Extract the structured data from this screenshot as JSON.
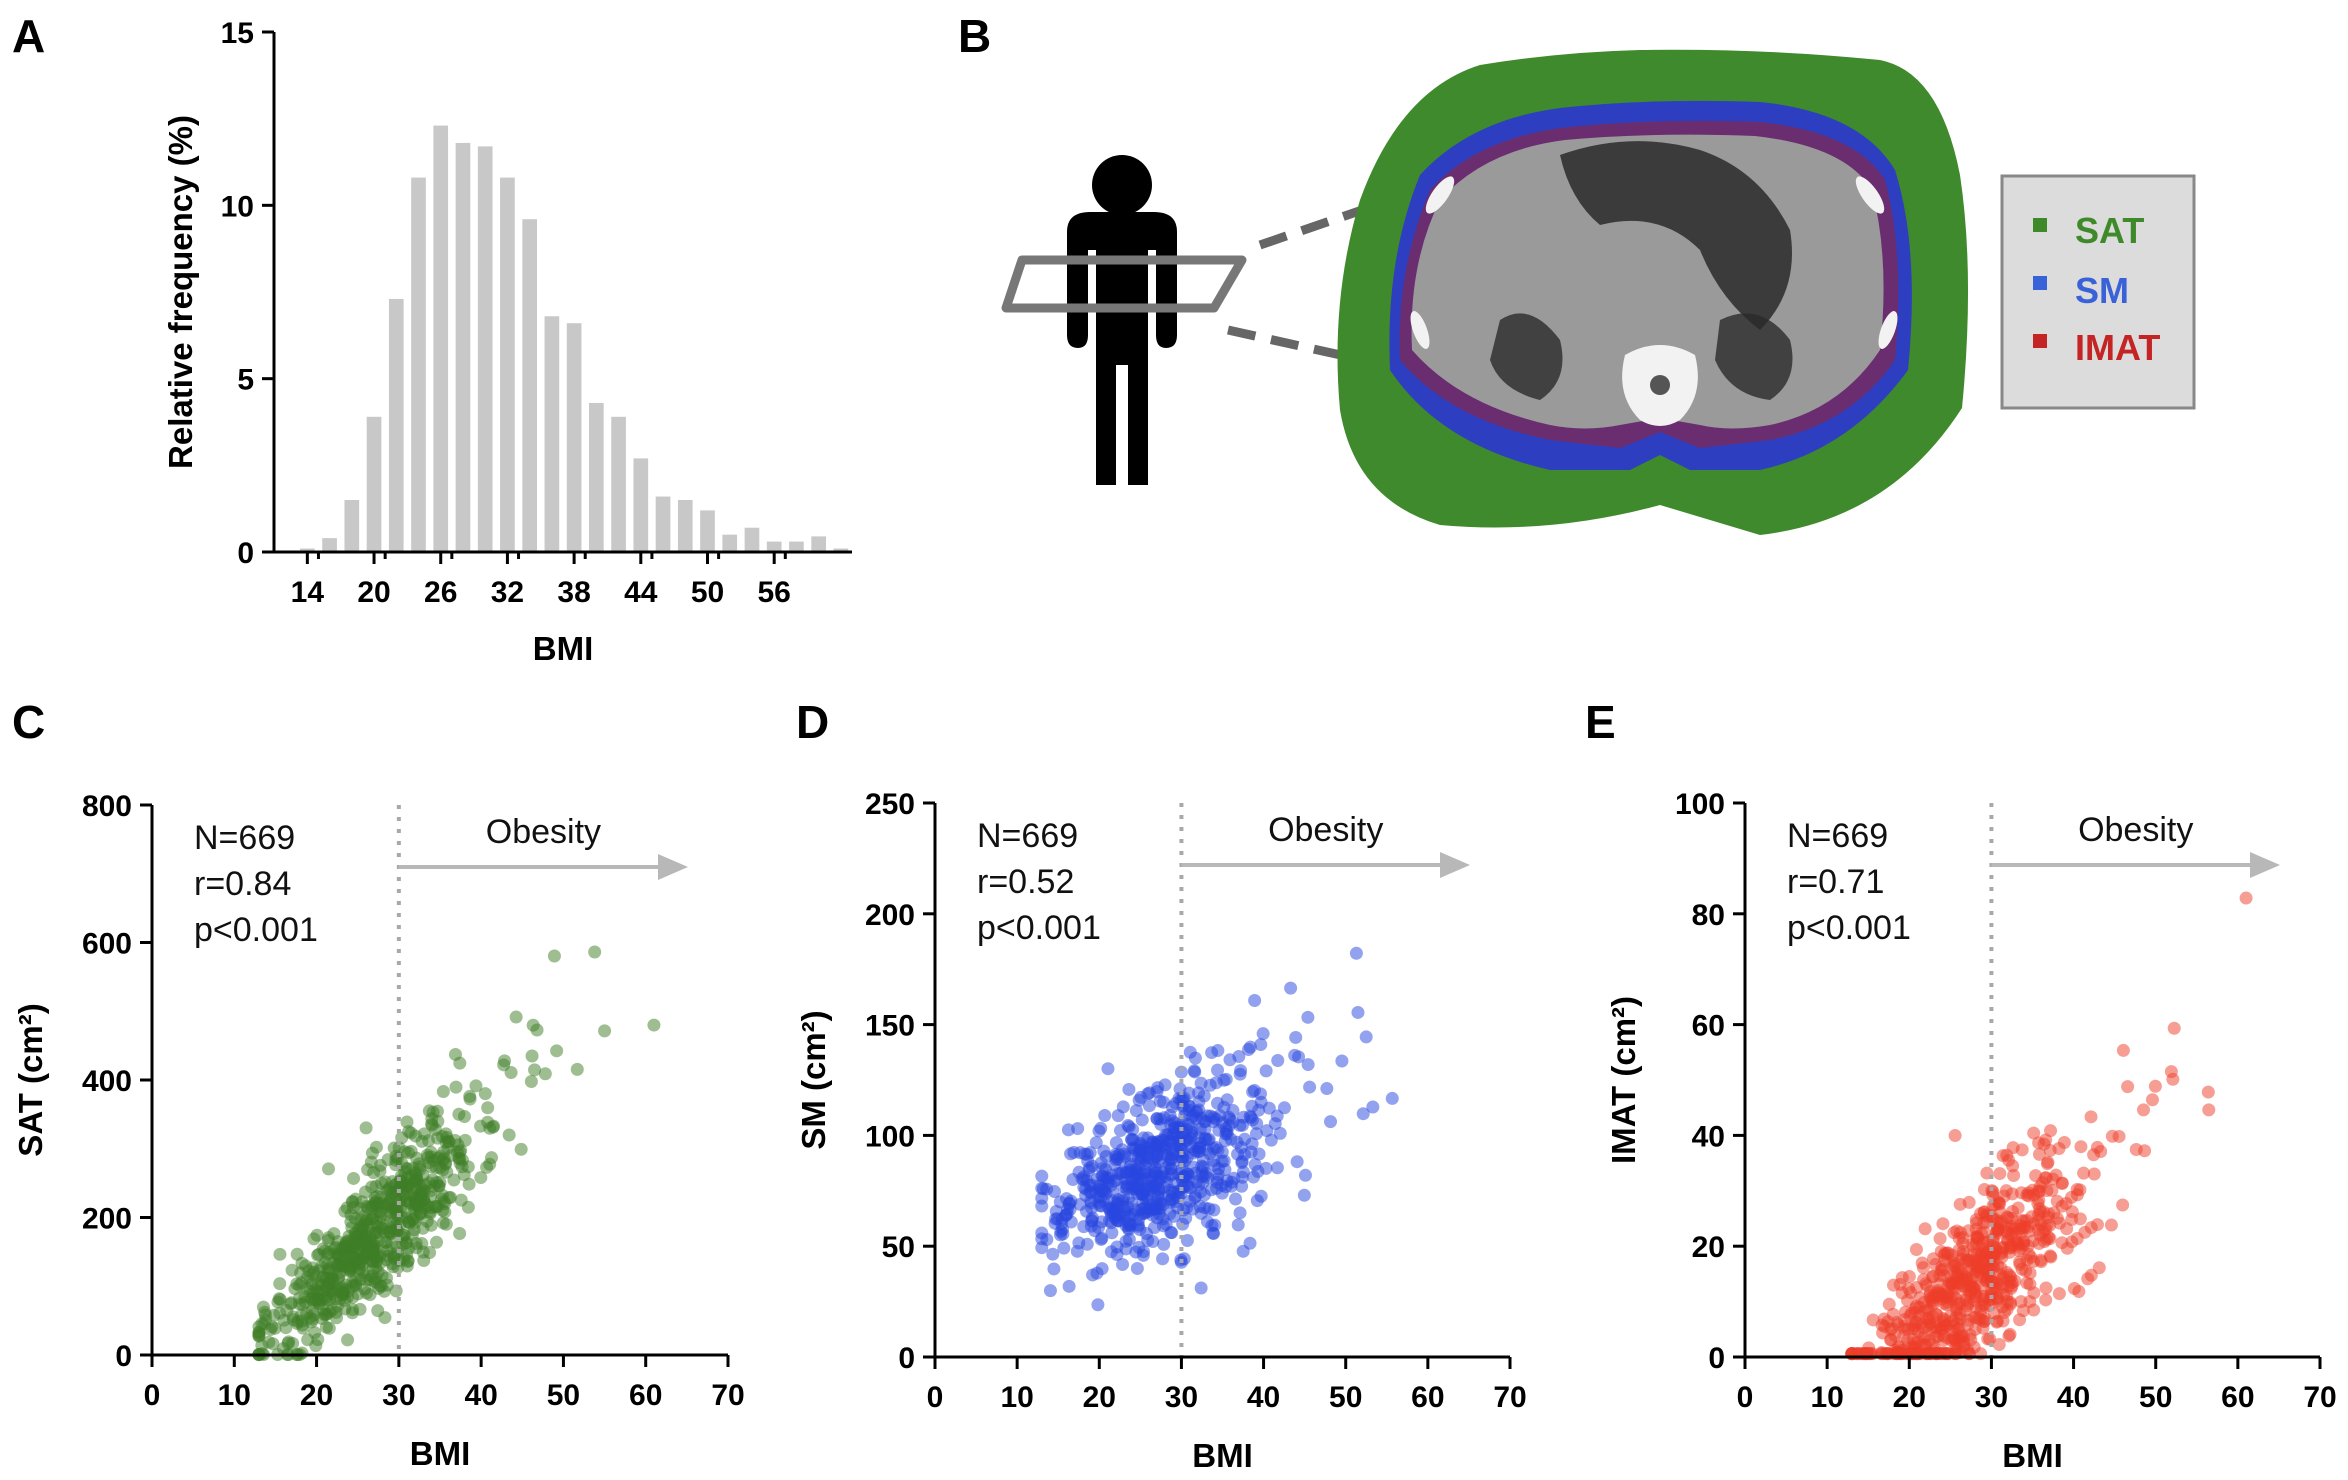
{
  "panel_labels": {
    "a": "A",
    "b": "B",
    "c": "C",
    "d": "D",
    "e": "E"
  },
  "chart_data": [
    {
      "id": "A",
      "type": "bar",
      "title": "",
      "xlabel": "BMI",
      "ylabel": "Relative frequency (%)",
      "ylim": [
        0,
        15
      ],
      "yticks": [
        "0",
        "5",
        "10",
        "15"
      ],
      "xticks": [
        "14",
        "20",
        "26",
        "32",
        "38",
        "44",
        "50",
        "56"
      ],
      "bar_color": "#c8c8c8",
      "bin_start": 14,
      "bin_width": 2,
      "values": [
        0.1,
        0.4,
        1.5,
        3.9,
        7.3,
        10.8,
        12.3,
        11.8,
        11.7,
        10.8,
        9.6,
        6.8,
        6.6,
        4.3,
        3.9,
        2.7,
        1.6,
        1.5,
        1.2,
        0.5,
        0.7,
        0.3,
        0.3,
        0.45,
        0.1
      ]
    },
    {
      "id": "C",
      "type": "scatter",
      "xlabel": "BMI",
      "ylabel": "SAT (cm²)",
      "xlim": [
        0,
        70
      ],
      "ylim": [
        0,
        800
      ],
      "xticks": [
        "0",
        "10",
        "20",
        "30",
        "40",
        "50",
        "60",
        "70"
      ],
      "yticks": [
        "0",
        "200",
        "400",
        "600",
        "800"
      ],
      "stats": [
        "N=669",
        "r=0.84",
        "p<0.001"
      ],
      "threshold_x": 30,
      "threshold_label": "Obesity",
      "color": "#3d7d25",
      "n": 669,
      "model": {
        "slope": 12.0,
        "intercept": -150,
        "noise": 46
      }
    },
    {
      "id": "D",
      "type": "scatter",
      "xlabel": "BMI",
      "ylabel": "SM (cm²)",
      "xlim": [
        0,
        70
      ],
      "ylim": [
        0,
        250
      ],
      "xticks": [
        "0",
        "10",
        "20",
        "30",
        "40",
        "50",
        "60",
        "70"
      ],
      "yticks": [
        "0",
        "50",
        "100",
        "150",
        "200",
        "250"
      ],
      "stats": [
        "N=669",
        "r=0.52",
        "p<0.001"
      ],
      "threshold_x": 30,
      "threshold_label": "Obesity",
      "color": "#2845e0",
      "n": 669,
      "model": {
        "slope": 1.7,
        "intercept": 38,
        "noise": 17
      }
    },
    {
      "id": "E",
      "type": "scatter",
      "xlabel": "BMI",
      "ylabel": "IMAT (cm²)",
      "xlim": [
        0,
        70
      ],
      "ylim": [
        0,
        100
      ],
      "xticks": [
        "0",
        "10",
        "20",
        "30",
        "40",
        "50",
        "60",
        "70"
      ],
      "yticks": [
        "0",
        "20",
        "40",
        "60",
        "80",
        "100"
      ],
      "stats": [
        "N=669",
        "r=0.71",
        "p<0.001"
      ],
      "threshold_x": 30,
      "threshold_label": "Obesity",
      "color": "#ee3d2a",
      "n": 669,
      "model": {
        "slope": 1.3,
        "intercept": -22,
        "noise": 7
      }
    }
  ],
  "ct_panel": {
    "legend": [
      {
        "label": "SAT",
        "color": "#3e8a2a"
      },
      {
        "label": "SM",
        "color": "#3a62d8"
      },
      {
        "label": "IMAT",
        "color": "#c42424"
      }
    ],
    "tissue_colors": {
      "sat": "#3f8a2c",
      "sm": "#2d3fc0",
      "imat": "#9c1f2e",
      "body": "#9a9a9a",
      "dark": "#2a2a2a",
      "bone": "#f2f2f2"
    }
  }
}
